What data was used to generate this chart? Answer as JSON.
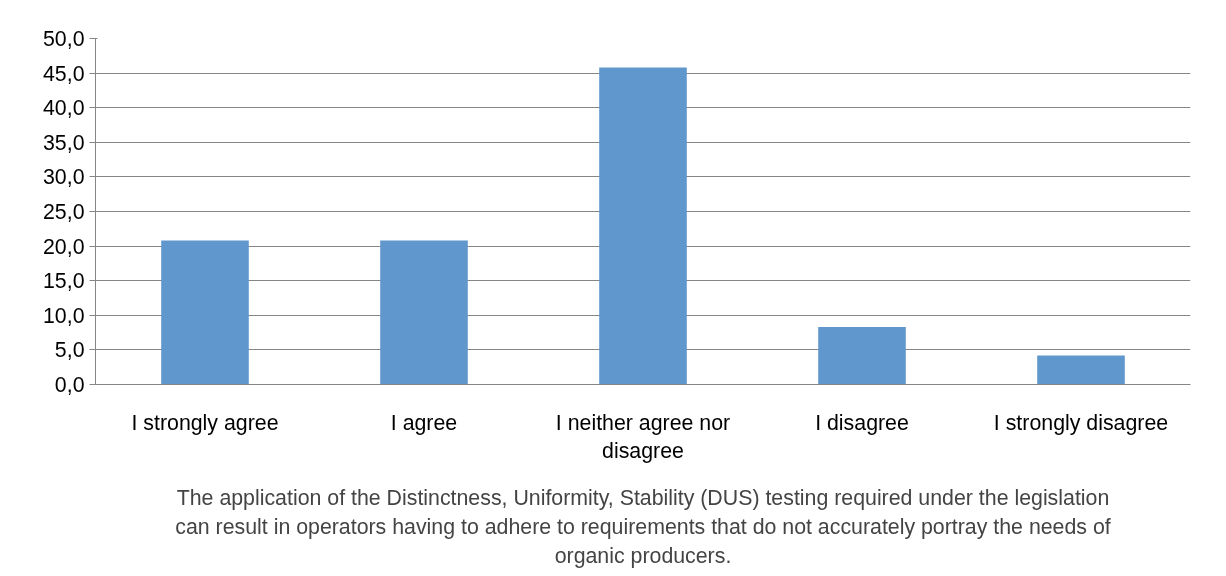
{
  "chart_data": {
    "type": "bar",
    "categories": [
      "I strongly agree",
      "I agree",
      "I neither agree nor disagree",
      "I disagree",
      "I strongly disagree"
    ],
    "values": [
      20.8,
      20.8,
      45.8,
      8.3,
      4.2
    ],
    "color": "#6097cc",
    "xlabel": "The application of the Distinctness, Uniformity, Stability (DUS) testing required under the legislation can result in operators having to adhere to requirements that do not accurately portray the needs of organic producers.",
    "ylim": [
      0,
      50
    ],
    "yticks": [
      {
        "value": 0,
        "label": "0,0"
      },
      {
        "value": 5,
        "label": "5,0"
      },
      {
        "value": 10,
        "label": "10,0"
      },
      {
        "value": 15,
        "label": "15,0"
      },
      {
        "value": 20,
        "label": "20,0"
      },
      {
        "value": 25,
        "label": "25,0"
      },
      {
        "value": 30,
        "label": "30,0"
      },
      {
        "value": 35,
        "label": "35,0"
      },
      {
        "value": 40,
        "label": "40,0"
      },
      {
        "value": 45,
        "label": "45,0"
      },
      {
        "value": 50,
        "label": "50,0"
      }
    ],
    "grid": "y"
  }
}
